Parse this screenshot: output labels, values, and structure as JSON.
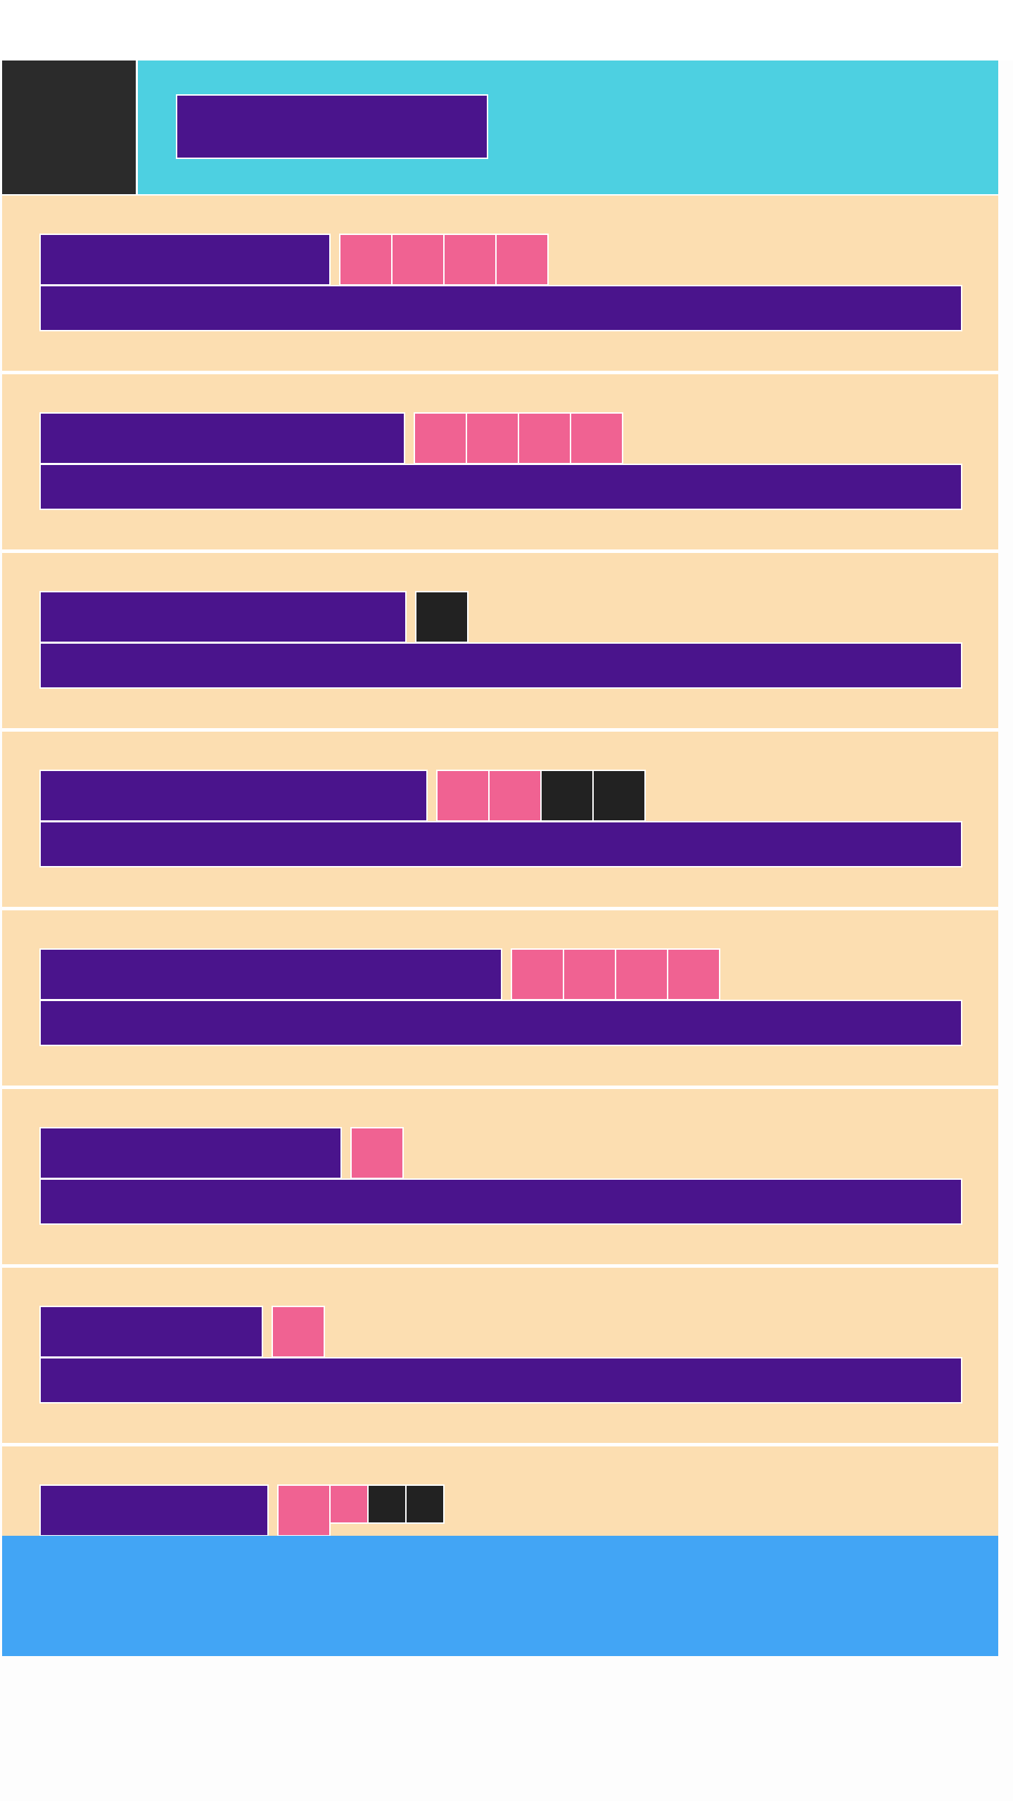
{
  "colors": {
    "header_bg": "#4dd0e1",
    "logo_bg": "#2b2b2b",
    "block": "#4a148c",
    "card_bg": "#fcdeb1",
    "chip_pink": "#f06292",
    "chip_dark": "#222222",
    "footer_bg": "#42a5f5"
  },
  "header": {
    "logo_icon": "logo-block-icon",
    "title": ""
  },
  "cards": [
    {
      "title": "",
      "body": "",
      "chips": [
        "pink",
        "pink",
        "pink",
        "pink"
      ]
    },
    {
      "title": "",
      "body": "",
      "chips": [
        "pink",
        "pink",
        "pink",
        "pink"
      ]
    },
    {
      "title": "",
      "body": "",
      "chips": [
        "dark"
      ]
    },
    {
      "title": "",
      "body": "",
      "chips": [
        "pink",
        "pink",
        "dark",
        "dark"
      ]
    },
    {
      "title": "",
      "body": "",
      "chips": [
        "pink",
        "pink",
        "pink",
        "pink"
      ]
    },
    {
      "title": "",
      "body": "",
      "chips": [
        "pink"
      ]
    },
    {
      "title": "",
      "body": "",
      "chips": [
        "pink"
      ]
    },
    {
      "title": "",
      "body": "",
      "chips": [
        "pink",
        "pink-small",
        "dark-small",
        "dark-small"
      ]
    }
  ],
  "footer": {
    "label": ""
  }
}
